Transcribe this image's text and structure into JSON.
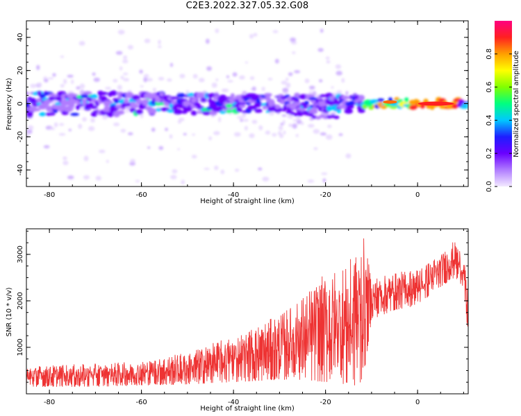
{
  "figure_title": "C2E3.2022.327.05.32.G08",
  "chart_data": [
    {
      "type": "heatmap",
      "title": "",
      "xlabel": "Height of straight line (km)",
      "ylabel": "Frequency (Hz)",
      "xlim": [
        -85,
        11
      ],
      "ylim": [
        -50,
        50
      ],
      "xticks": [
        -80,
        -60,
        -40,
        -20,
        0
      ],
      "yticks": [
        -40,
        -20,
        0,
        20,
        40
      ],
      "colorbar": {
        "label": "Normalized spectral amplitude",
        "range": [
          0,
          1
        ],
        "ticks": [
          "0.0",
          "0.2",
          "0.4",
          "0.6",
          "0.8"
        ],
        "colors": [
          "#f3eaff",
          "#b07cff",
          "#6a00ff",
          "#1e1eff",
          "#00c8ff",
          "#00ff80",
          "#80ff00",
          "#ffff00",
          "#ffa000",
          "#ff2020",
          "#ff0080"
        ]
      },
      "description_of_band": {
        "center_frequency_hz": 0,
        "half_width_hz": [
          8,
          2
        ],
        "x_range_km": [
          -85,
          11
        ],
        "peak_amplitude_near_x_km": [
          -10,
          10
        ]
      }
    },
    {
      "type": "line",
      "title": "",
      "xlabel": "Height of straight line (km)",
      "ylabel": "SNR (10 * v/v)",
      "xlim": [
        -85,
        11
      ],
      "ylim": [
        0,
        3550
      ],
      "xticks": [
        -80,
        -60,
        -40,
        -20,
        0
      ],
      "yticks": [
        1000,
        2000,
        3000
      ],
      "series": [
        {
          "color": "#ee3333",
          "envelope_x": [
            -85,
            -70,
            -60,
            -50,
            -40,
            -30,
            -25,
            -20,
            -15,
            -12,
            -10,
            -5,
            0,
            5,
            8,
            10,
            11
          ],
          "envelope_low": [
            150,
            150,
            180,
            200,
            250,
            300,
            300,
            250,
            200,
            150,
            1600,
            1800,
            1900,
            2300,
            2500,
            2300,
            1000
          ],
          "envelope_high": [
            600,
            650,
            700,
            900,
            1250,
            1700,
            2100,
            2600,
            2800,
            3500,
            2500,
            2600,
            2700,
            3000,
            3300,
            3000,
            2100
          ]
        }
      ]
    }
  ]
}
